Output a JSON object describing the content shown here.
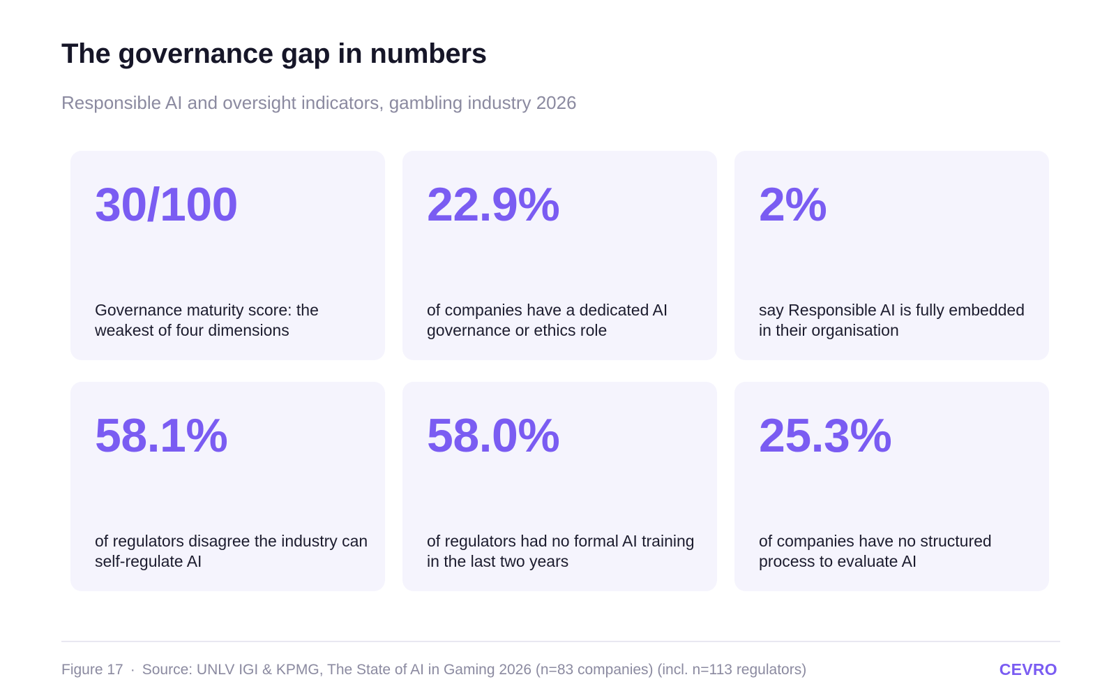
{
  "header": {
    "title": "The governance gap in numbers",
    "subtitle": "Responsible AI and oversight indicators, gambling industry 2026"
  },
  "chart_data": {
    "type": "table",
    "title": "The governance gap in numbers",
    "subtitle": "Responsible AI and oversight indicators, gambling industry 2026",
    "stats": [
      {
        "value": "30/100",
        "label": "Governance maturity score: the weakest of four dimensions"
      },
      {
        "value": "22.9%",
        "label": "of companies have a dedicated AI governance or ethics role"
      },
      {
        "value": "2%",
        "label": "say Responsible AI is fully embedded in their organisation"
      },
      {
        "value": "58.1%",
        "label": "of regulators disagree the industry can self-regulate AI"
      },
      {
        "value": "58.0%",
        "label": "of regulators had no formal AI training in the last two years"
      },
      {
        "value": "25.3%",
        "label": "of companies have no structured process to evaluate AI"
      }
    ]
  },
  "footer": {
    "figure": "Figure 17",
    "separator": "·",
    "source": "Source: UNLV IGI & KPMG, The State of AI in Gaming 2026 (n=83 companies) (incl. n=113 regulators)",
    "brand": "CEVRO"
  },
  "colors": {
    "accent": "#7a5cf2",
    "card_background": "#f5f4fd",
    "title": "#161628",
    "muted": "#8b8aa0"
  }
}
